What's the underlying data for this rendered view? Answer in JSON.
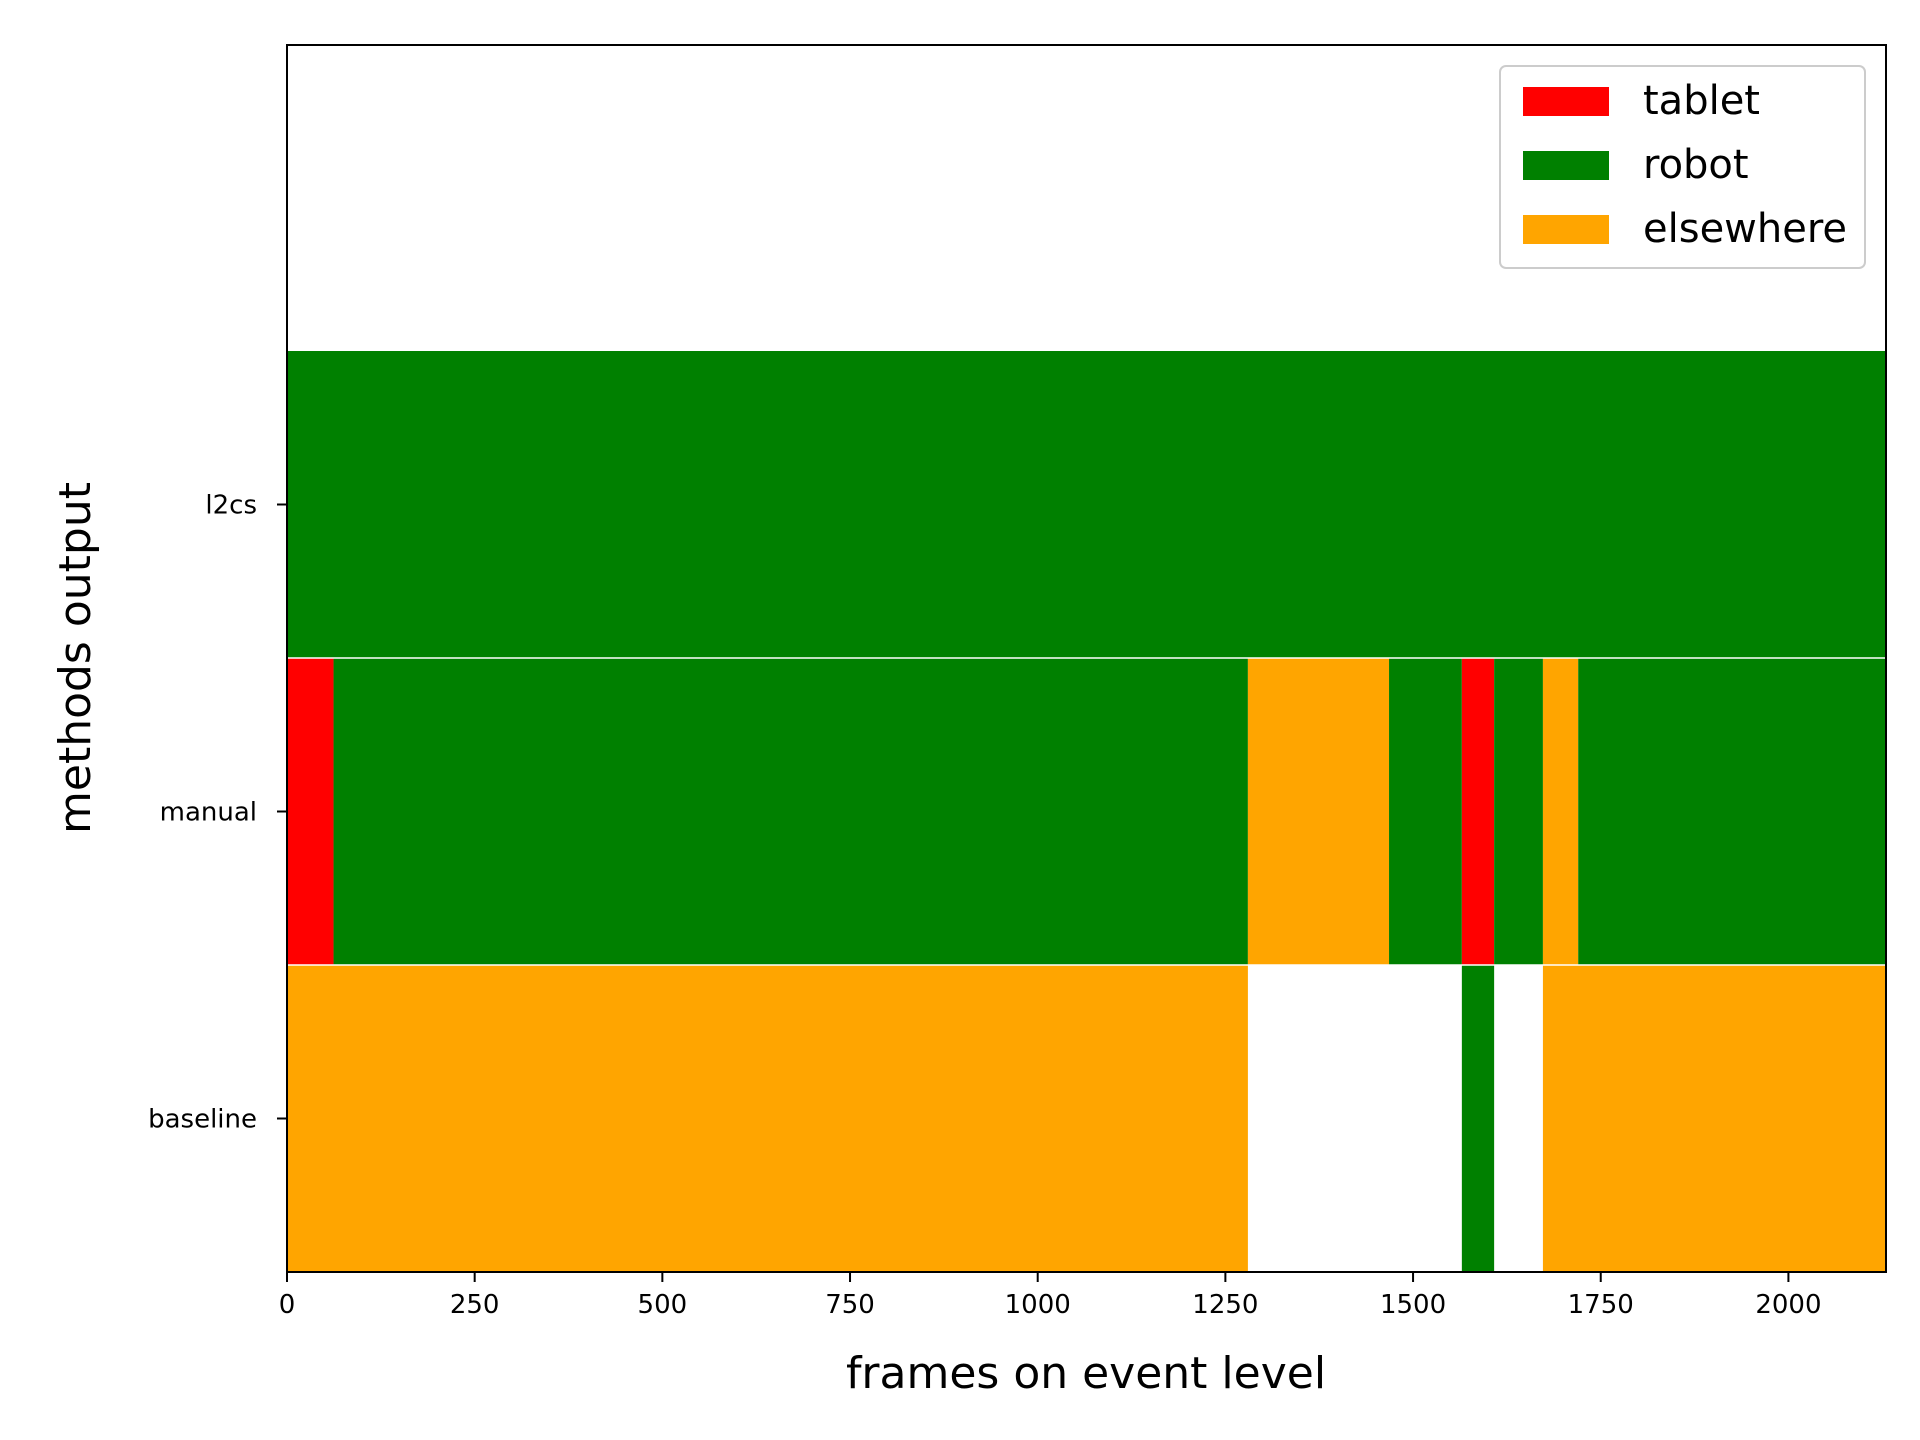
{
  "chart_data": {
    "type": "bar",
    "orientation": "horizontal-timeline",
    "xlabel": "frames on event level",
    "ylabel": "methods output",
    "xlim": [
      0,
      2130
    ],
    "xticks": [
      0,
      250,
      500,
      750,
      1000,
      1250,
      1500,
      1750,
      2000
    ],
    "xtick_labels": [
      "0",
      "250",
      "500",
      "750",
      "1000",
      "1250",
      "1500",
      "1750",
      "2000"
    ],
    "categories": [
      "baseline",
      "manual",
      "l2cs"
    ],
    "colors": {
      "tablet": "#ff0000",
      "robot": "#008000",
      "elsewhere": "#ffa500"
    },
    "legend": {
      "placement": "top-right",
      "entries": [
        {
          "label": "tablet",
          "color": "#ff0000"
        },
        {
          "label": "robot",
          "color": "#008000"
        },
        {
          "label": "elsewhere",
          "color": "#ffa500"
        }
      ]
    },
    "rows": [
      {
        "name": "baseline",
        "segments": [
          {
            "start": 0,
            "end": 1280,
            "label": "elsewhere"
          },
          {
            "start": 1565,
            "end": 1608,
            "label": "robot"
          },
          {
            "start": 1673,
            "end": 2130,
            "label": "elsewhere"
          }
        ]
      },
      {
        "name": "manual",
        "segments": [
          {
            "start": 0,
            "end": 62,
            "label": "tablet"
          },
          {
            "start": 62,
            "end": 1280,
            "label": "robot"
          },
          {
            "start": 1280,
            "end": 1468,
            "label": "elsewhere"
          },
          {
            "start": 1468,
            "end": 1565,
            "label": "robot"
          },
          {
            "start": 1565,
            "end": 1608,
            "label": "tablet"
          },
          {
            "start": 1608,
            "end": 1673,
            "label": "robot"
          },
          {
            "start": 1673,
            "end": 1720,
            "label": "elsewhere"
          },
          {
            "start": 1720,
            "end": 2130,
            "label": "robot"
          }
        ]
      },
      {
        "name": "l2cs",
        "segments": [
          {
            "start": 0,
            "end": 2130,
            "label": "robot"
          }
        ]
      }
    ]
  }
}
